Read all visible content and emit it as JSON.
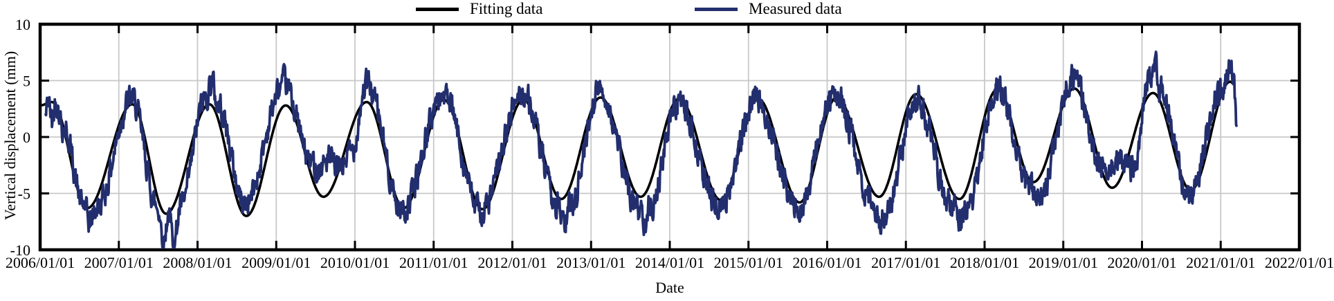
{
  "legend": {
    "fitting": "Fitting data",
    "measured": "Measured data"
  },
  "axes": {
    "x_title": "Date",
    "y_title": "Vertical displacement (mm)"
  },
  "colors": {
    "fitting": "#000000",
    "measured": "#222e6d",
    "grid": "#c8c8c8",
    "frame": "#000000",
    "background": "#ffffff"
  },
  "chart_data": {
    "type": "line",
    "title": "",
    "xlabel": "Date",
    "ylabel": "Vertical displacement (mm)",
    "ylim": [
      -10,
      10
    ],
    "y_ticks": [
      10,
      5,
      0,
      -5,
      -10
    ],
    "y_tick_labels": [
      "10",
      "5",
      "0",
      "-5",
      "-10"
    ],
    "x_range_years": [
      2006,
      2022
    ],
    "x_tick_years": [
      2006,
      2007,
      2008,
      2009,
      2010,
      2011,
      2012,
      2013,
      2014,
      2015,
      2016,
      2017,
      2018,
      2019,
      2020,
      2021,
      2022
    ],
    "x_tick_labels": [
      "2006/01/01",
      "2007/01/01",
      "2008/01/01",
      "2009/01/01",
      "2010/01/01",
      "2011/01/01",
      "2012/01/01",
      "2013/01/01",
      "2014/01/01",
      "2015/01/01",
      "2016/01/01",
      "2017/01/01",
      "2018/01/01",
      "2019/01/01",
      "2020/01/01",
      "2021/01/01",
      "2022/01/01"
    ],
    "grid": true,
    "legend_position": "top-center",
    "series": [
      {
        "name": "Fitting data",
        "color": "#000000",
        "style": "smooth",
        "line_width": 3.6,
        "noise_amplitude_mm": 0,
        "keypoints": [
          [
            2006.0,
            2.8
          ],
          [
            2006.15,
            3.1
          ],
          [
            2006.6,
            -6.3
          ],
          [
            2007.17,
            2.9
          ],
          [
            2007.6,
            -6.8
          ],
          [
            2008.15,
            2.9
          ],
          [
            2008.62,
            -7.0
          ],
          [
            2009.12,
            2.8
          ],
          [
            2009.6,
            -5.3
          ],
          [
            2010.15,
            3.1
          ],
          [
            2010.62,
            -6.3
          ],
          [
            2011.13,
            3.3
          ],
          [
            2011.62,
            -6.4
          ],
          [
            2012.14,
            3.3
          ],
          [
            2012.62,
            -5.5
          ],
          [
            2013.12,
            3.5
          ],
          [
            2013.63,
            -5.3
          ],
          [
            2014.12,
            3.4
          ],
          [
            2014.65,
            -5.6
          ],
          [
            2015.12,
            3.4
          ],
          [
            2015.65,
            -5.8
          ],
          [
            2016.12,
            3.5
          ],
          [
            2016.66,
            -5.3
          ],
          [
            2017.13,
            3.8
          ],
          [
            2017.68,
            -5.5
          ],
          [
            2018.16,
            4.2
          ],
          [
            2018.62,
            -4.0
          ],
          [
            2019.14,
            4.3
          ],
          [
            2019.62,
            -4.5
          ],
          [
            2020.14,
            3.9
          ],
          [
            2020.62,
            -4.7
          ],
          [
            2021.12,
            4.9
          ],
          [
            2021.17,
            4.7
          ]
        ]
      },
      {
        "name": "Measured data",
        "color": "#222e6d",
        "style": "noisy",
        "line_width": 3.8,
        "noise_amplitude_mm": 0.5,
        "keypoints": [
          [
            2006.07,
            1.8
          ],
          [
            2006.1,
            3.3
          ],
          [
            2006.15,
            1.5
          ],
          [
            2006.2,
            3.2
          ],
          [
            2006.3,
            0.8
          ],
          [
            2006.55,
            -6.0
          ],
          [
            2006.63,
            -7.6
          ],
          [
            2006.72,
            -6.2
          ],
          [
            2007.16,
            3.4
          ],
          [
            2007.5,
            -6.3
          ],
          [
            2007.57,
            -9.3
          ],
          [
            2007.63,
            -6.7
          ],
          [
            2007.7,
            -9.5
          ],
          [
            2007.78,
            -6.3
          ],
          [
            2008.1,
            3.4
          ],
          [
            2008.18,
            5.0
          ],
          [
            2008.25,
            3.0
          ],
          [
            2008.6,
            -5.9
          ],
          [
            2009.1,
            4.7
          ],
          [
            2009.45,
            -2.3
          ],
          [
            2009.55,
            -2.8
          ],
          [
            2009.65,
            -2.0
          ],
          [
            2009.8,
            -2.9
          ],
          [
            2009.95,
            -1.3
          ],
          [
            2010.15,
            4.7
          ],
          [
            2010.6,
            -6.5
          ],
          [
            2011.12,
            3.7
          ],
          [
            2011.6,
            -6.6
          ],
          [
            2012.13,
            3.9
          ],
          [
            2012.58,
            -6.0
          ],
          [
            2012.66,
            -7.9
          ],
          [
            2012.74,
            -5.9
          ],
          [
            2013.1,
            4.2
          ],
          [
            2013.6,
            -6.2
          ],
          [
            2013.67,
            -7.1
          ],
          [
            2013.75,
            -6.0
          ],
          [
            2014.1,
            3.0
          ],
          [
            2014.63,
            -6.1
          ],
          [
            2015.1,
            3.2
          ],
          [
            2015.63,
            -6.3
          ],
          [
            2016.1,
            3.7
          ],
          [
            2016.6,
            -6.1
          ],
          [
            2016.7,
            -7.6
          ],
          [
            2016.78,
            -5.9
          ],
          [
            2017.12,
            3.4
          ],
          [
            2017.6,
            -6.2
          ],
          [
            2017.7,
            -7.4
          ],
          [
            2017.8,
            -6.0
          ],
          [
            2018.15,
            4.5
          ],
          [
            2018.6,
            -4.7
          ],
          [
            2018.67,
            -5.9
          ],
          [
            2019.13,
            5.4
          ],
          [
            2019.45,
            -2.0
          ],
          [
            2019.6,
            -2.7
          ],
          [
            2019.72,
            -2.1
          ],
          [
            2019.88,
            -2.9
          ],
          [
            2020.1,
            5.5
          ],
          [
            2020.16,
            6.5
          ],
          [
            2020.22,
            4.3
          ],
          [
            2020.6,
            -5.3
          ],
          [
            2021.0,
            4.0
          ],
          [
            2021.08,
            5.3
          ],
          [
            2021.12,
            6.6
          ],
          [
            2021.16,
            5.0
          ],
          [
            2021.2,
            1.0
          ]
        ]
      }
    ]
  }
}
